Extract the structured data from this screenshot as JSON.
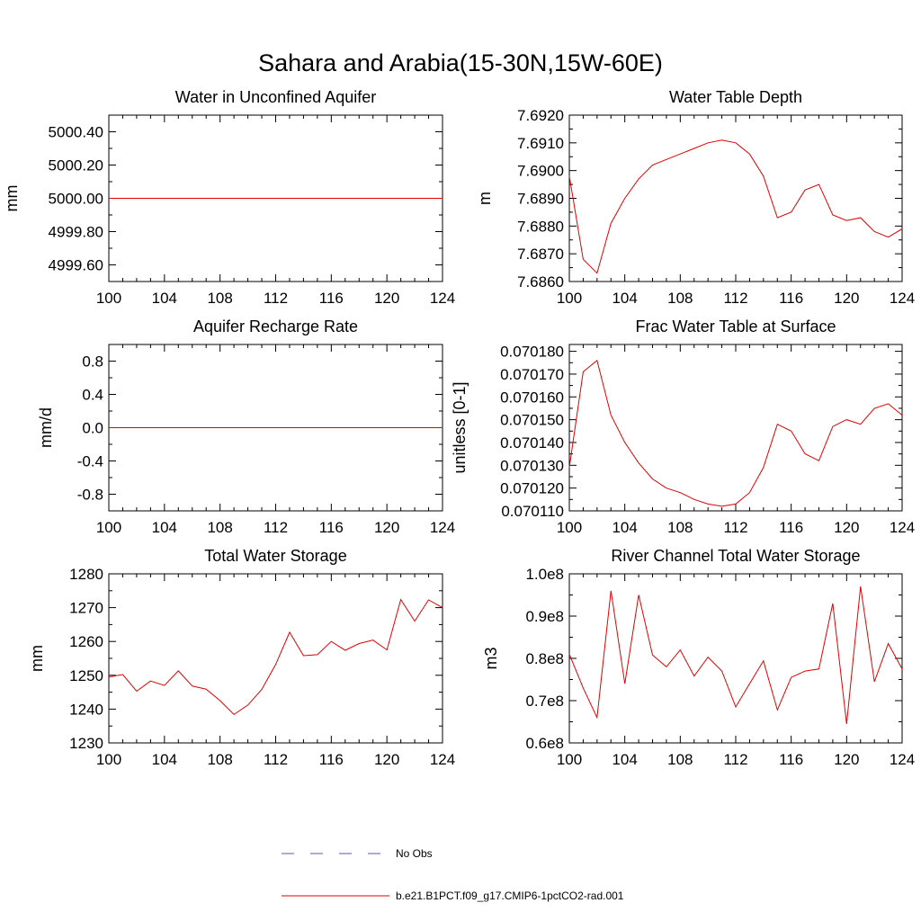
{
  "figure_title": "Sahara and Arabia(15-30N,15W-60E)",
  "legend": {
    "items": [
      {
        "label": "No Obs",
        "style": "dashed",
        "color": "#5a5aa8"
      },
      {
        "label": "b.e21.B1PCT.f09_g17.CMIP6-1pctCO2-rad.001",
        "style": "solid",
        "color": "#e00000"
      }
    ]
  },
  "chart_data": [
    {
      "type": "line",
      "title": "Water in Unconfined Aquifer",
      "ylabel": "mm",
      "xlim": [
        100,
        124
      ],
      "ylim": [
        4999.5,
        5000.5
      ],
      "xticks": [
        100,
        104,
        108,
        112,
        116,
        120,
        124
      ],
      "yticks": [
        4999.6,
        4999.8,
        5000.0,
        5000.2,
        5000.4
      ],
      "ytick_labels": [
        "4999.60",
        "4999.80",
        "5000.00",
        "5000.20",
        "5000.40"
      ],
      "x": [
        100,
        124
      ],
      "series": [
        {
          "color": "#e00000",
          "values": [
            5000.0,
            5000.0
          ]
        }
      ]
    },
    {
      "type": "line",
      "title": "Water Table Depth",
      "ylabel": "m",
      "xlim": [
        100,
        124
      ],
      "ylim": [
        7.686,
        7.692
      ],
      "xticks": [
        100,
        104,
        108,
        112,
        116,
        120,
        124
      ],
      "yticks": [
        7.686,
        7.687,
        7.688,
        7.689,
        7.69,
        7.691,
        7.692
      ],
      "ytick_labels": [
        "7.6860",
        "7.6870",
        "7.6880",
        "7.6890",
        "7.6900",
        "7.6910",
        "7.6920"
      ],
      "x": [
        100,
        101,
        102,
        103,
        104,
        105,
        106,
        107,
        108,
        109,
        110,
        111,
        112,
        113,
        114,
        115,
        116,
        117,
        118,
        119,
        120,
        121,
        122,
        123,
        124
      ],
      "series": [
        {
          "color": "#e00000",
          "values": [
            7.6898,
            7.6868,
            7.6863,
            7.6881,
            7.689,
            7.6897,
            7.6902,
            7.6904,
            7.6906,
            7.6908,
            7.691,
            7.6911,
            7.691,
            7.6906,
            7.6898,
            7.6883,
            7.6885,
            7.6893,
            7.6895,
            7.6884,
            7.6882,
            7.6883,
            7.6878,
            7.6876,
            7.6879
          ]
        }
      ]
    },
    {
      "type": "line",
      "title": "Aquifer Recharge Rate",
      "ylabel": "mm/d",
      "xlim": [
        100,
        124
      ],
      "ylim": [
        -1.0,
        1.0
      ],
      "xticks": [
        100,
        104,
        108,
        112,
        116,
        120,
        124
      ],
      "yticks": [
        -0.8,
        -0.4,
        0.0,
        0.4,
        0.8
      ],
      "ytick_labels": [
        "-0.8",
        "-0.4",
        "0.0",
        "0.4",
        "0.8"
      ],
      "x": [
        100,
        124
      ],
      "series": [
        {
          "color": "#e00000",
          "values": [
            0.0,
            0.0
          ]
        }
      ]
    },
    {
      "type": "line",
      "title": "Frac Water Table at Surface",
      "ylabel": "unitless [0-1]",
      "xlim": [
        100,
        124
      ],
      "ylim": [
        0.07011,
        0.070183
      ],
      "xticks": [
        100,
        104,
        108,
        112,
        116,
        120,
        124
      ],
      "yticks": [
        0.07011,
        0.07012,
        0.07013,
        0.07014,
        0.07015,
        0.07016,
        0.07017,
        0.07018
      ],
      "ytick_labels": [
        "0.070110",
        "0.070120",
        "0.070130",
        "0.070140",
        "0.070150",
        "0.070160",
        "0.070170",
        "0.070180"
      ],
      "x": [
        100,
        101,
        102,
        103,
        104,
        105,
        106,
        107,
        108,
        109,
        110,
        111,
        112,
        113,
        114,
        115,
        116,
        117,
        118,
        119,
        120,
        121,
        122,
        123,
        124
      ],
      "series": [
        {
          "color": "#e00000",
          "values": [
            0.070129,
            0.070171,
            0.070176,
            0.070152,
            0.07014,
            0.070131,
            0.070124,
            0.07012,
            0.070118,
            0.070115,
            0.070113,
            0.070112,
            0.070113,
            0.070118,
            0.070129,
            0.070148,
            0.070145,
            0.070135,
            0.070132,
            0.070147,
            0.07015,
            0.070148,
            0.070155,
            0.070157,
            0.070152
          ]
        }
      ]
    },
    {
      "type": "line",
      "title": "Total Water Storage",
      "ylabel": "mm",
      "xlim": [
        100,
        124
      ],
      "ylim": [
        1230,
        1280
      ],
      "xticks": [
        100,
        104,
        108,
        112,
        116,
        120,
        124
      ],
      "yticks": [
        1230,
        1240,
        1250,
        1260,
        1270,
        1280
      ],
      "ytick_labels": [
        "1230",
        "1240",
        "1250",
        "1260",
        "1270",
        "1280"
      ],
      "x": [
        100,
        101,
        102,
        103,
        104,
        105,
        106,
        107,
        108,
        109,
        110,
        111,
        112,
        113,
        114,
        115,
        116,
        117,
        118,
        119,
        120,
        121,
        122,
        123,
        124
      ],
      "series": [
        {
          "color": "#e00000",
          "values": [
            1249.5,
            1250.2,
            1245.3,
            1248.3,
            1247.0,
            1251.3,
            1246.8,
            1245.9,
            1242.5,
            1238.4,
            1241.2,
            1245.8,
            1253.2,
            1262.7,
            1255.8,
            1256.1,
            1260.0,
            1257.4,
            1259.4,
            1260.4,
            1257.5,
            1272.4,
            1266.0,
            1272.3,
            1270.0
          ]
        }
      ]
    },
    {
      "type": "line",
      "title": "River Channel Total Water Storage",
      "ylabel": "m3",
      "xlim": [
        100,
        124
      ],
      "ylim": [
        60000000,
        100000000
      ],
      "xticks": [
        100,
        104,
        108,
        112,
        116,
        120,
        124
      ],
      "yticks": [
        60000000,
        70000000,
        80000000,
        90000000,
        100000000
      ],
      "ytick_labels": [
        "0.6e8",
        "0.7e8",
        "0.8e8",
        "0.9e8",
        "1.0e8"
      ],
      "x": [
        100,
        101,
        102,
        103,
        104,
        105,
        106,
        107,
        108,
        109,
        110,
        111,
        112,
        113,
        114,
        115,
        116,
        117,
        118,
        119,
        120,
        121,
        122,
        123,
        124
      ],
      "series": [
        {
          "color": "#e00000",
          "values": [
            81000000,
            73000000,
            66000000,
            96000000,
            74000000,
            95000000,
            80800000,
            78000000,
            82000000,
            75800000,
            80300000,
            77000000,
            68500000,
            74000000,
            79400000,
            67800000,
            75500000,
            77000000,
            77500000,
            93000000,
            64500000,
            97000000,
            74500000,
            83500000,
            77500000
          ]
        }
      ]
    }
  ]
}
